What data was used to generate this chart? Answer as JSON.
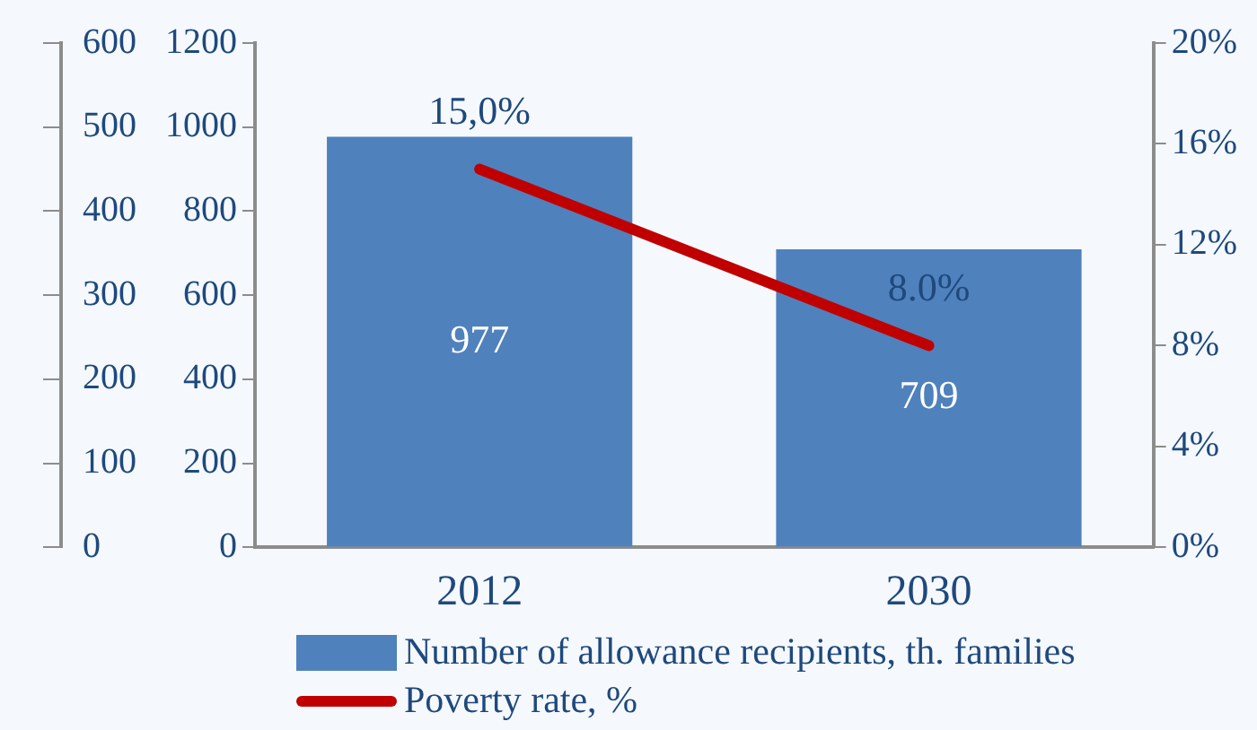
{
  "chart_data": {
    "type": "bar",
    "categories": [
      "2012",
      "2030"
    ],
    "series": [
      {
        "name": "Number of allowance recipients, th. families",
        "color": "#4f81bd",
        "values": [
          977,
          709
        ],
        "value_labels": [
          "977",
          "709"
        ]
      },
      {
        "name": "Poverty rate, %",
        "type": "line",
        "axis": "y2",
        "color": "#c00000",
        "values": [
          15,
          8
        ],
        "value_labels": [
          "15,0%",
          "8.0%"
        ]
      }
    ],
    "ylim": [
      0,
      1200
    ],
    "yticks": [
      0,
      200,
      400,
      600,
      800,
      1000,
      1200
    ],
    "y2lim": [
      0,
      20
    ],
    "y2ticks": [
      {
        "value": 0,
        "label": "0%"
      },
      {
        "value": 4,
        "label": "4%"
      },
      {
        "value": 8,
        "label": "8%"
      },
      {
        "value": 12,
        "label": "12%"
      },
      {
        "value": 16,
        "label": "16%"
      },
      {
        "value": 20,
        "label": "20%"
      }
    ],
    "y3lim": [
      0,
      600
    ],
    "y3ticks": [
      0,
      100,
      200,
      300,
      400,
      500,
      600
    ],
    "grid": false,
    "legend": "bottom",
    "marker": "none",
    "line_style": "solid"
  }
}
